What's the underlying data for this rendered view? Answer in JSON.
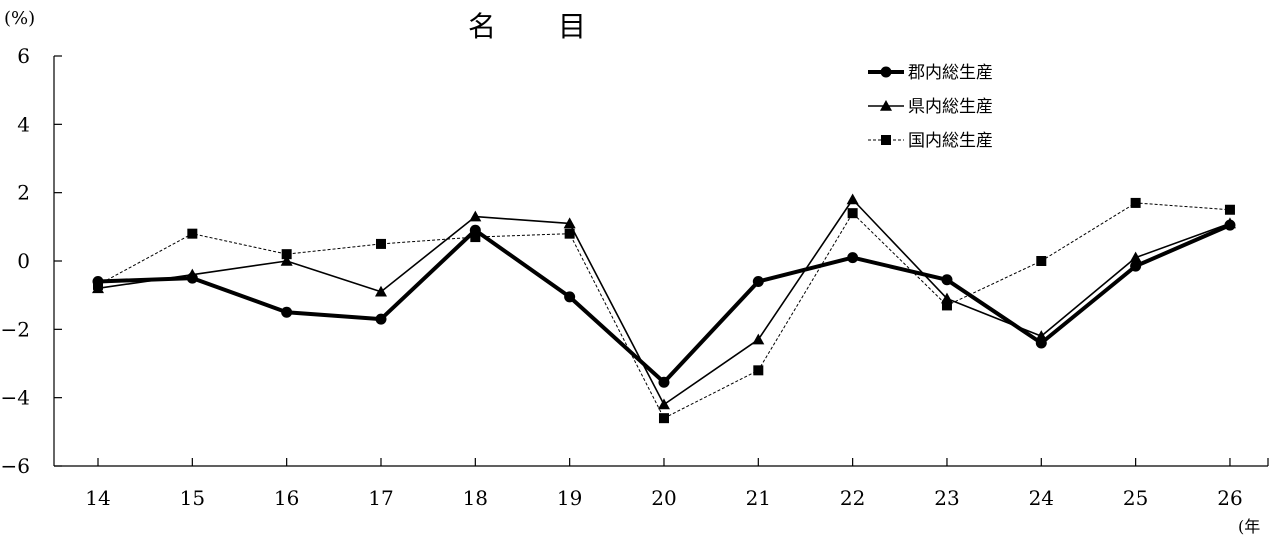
{
  "chart_data": {
    "type": "line",
    "title": "名　　目",
    "ylabel": "(%)",
    "xlabel": "(年",
    "categories": [
      "14",
      "15",
      "16",
      "17",
      "18",
      "19",
      "20",
      "21",
      "22",
      "23",
      "24",
      "25",
      "26"
    ],
    "ylim": [
      -6,
      6
    ],
    "yticks": [
      6,
      4,
      2,
      0,
      -2,
      -4,
      -6
    ],
    "ytick_labels": [
      "6",
      "4",
      "2",
      "0",
      "−2",
      "−4",
      "−6"
    ],
    "grid": false,
    "legend_position": "top-right",
    "series": [
      {
        "name": "郡内総生産",
        "marker": "circle",
        "style": "thick",
        "values": [
          -0.6,
          -0.5,
          -1.5,
          -1.7,
          0.9,
          -1.05,
          -3.55,
          -0.6,
          0.1,
          -0.55,
          -2.4,
          -0.15,
          1.05
        ]
      },
      {
        "name": "県内総生産",
        "marker": "triangle",
        "style": "solid",
        "values": [
          -0.8,
          -0.4,
          0.0,
          -0.9,
          1.3,
          1.1,
          -4.2,
          -2.3,
          1.8,
          -1.1,
          -2.2,
          0.1,
          1.1
        ]
      },
      {
        "name": "国内総生産",
        "marker": "square",
        "style": "dashed",
        "values": [
          -0.7,
          0.8,
          0.2,
          0.5,
          0.7,
          0.8,
          -4.6,
          -3.2,
          1.4,
          -1.3,
          0.0,
          1.7,
          1.5
        ]
      }
    ]
  }
}
